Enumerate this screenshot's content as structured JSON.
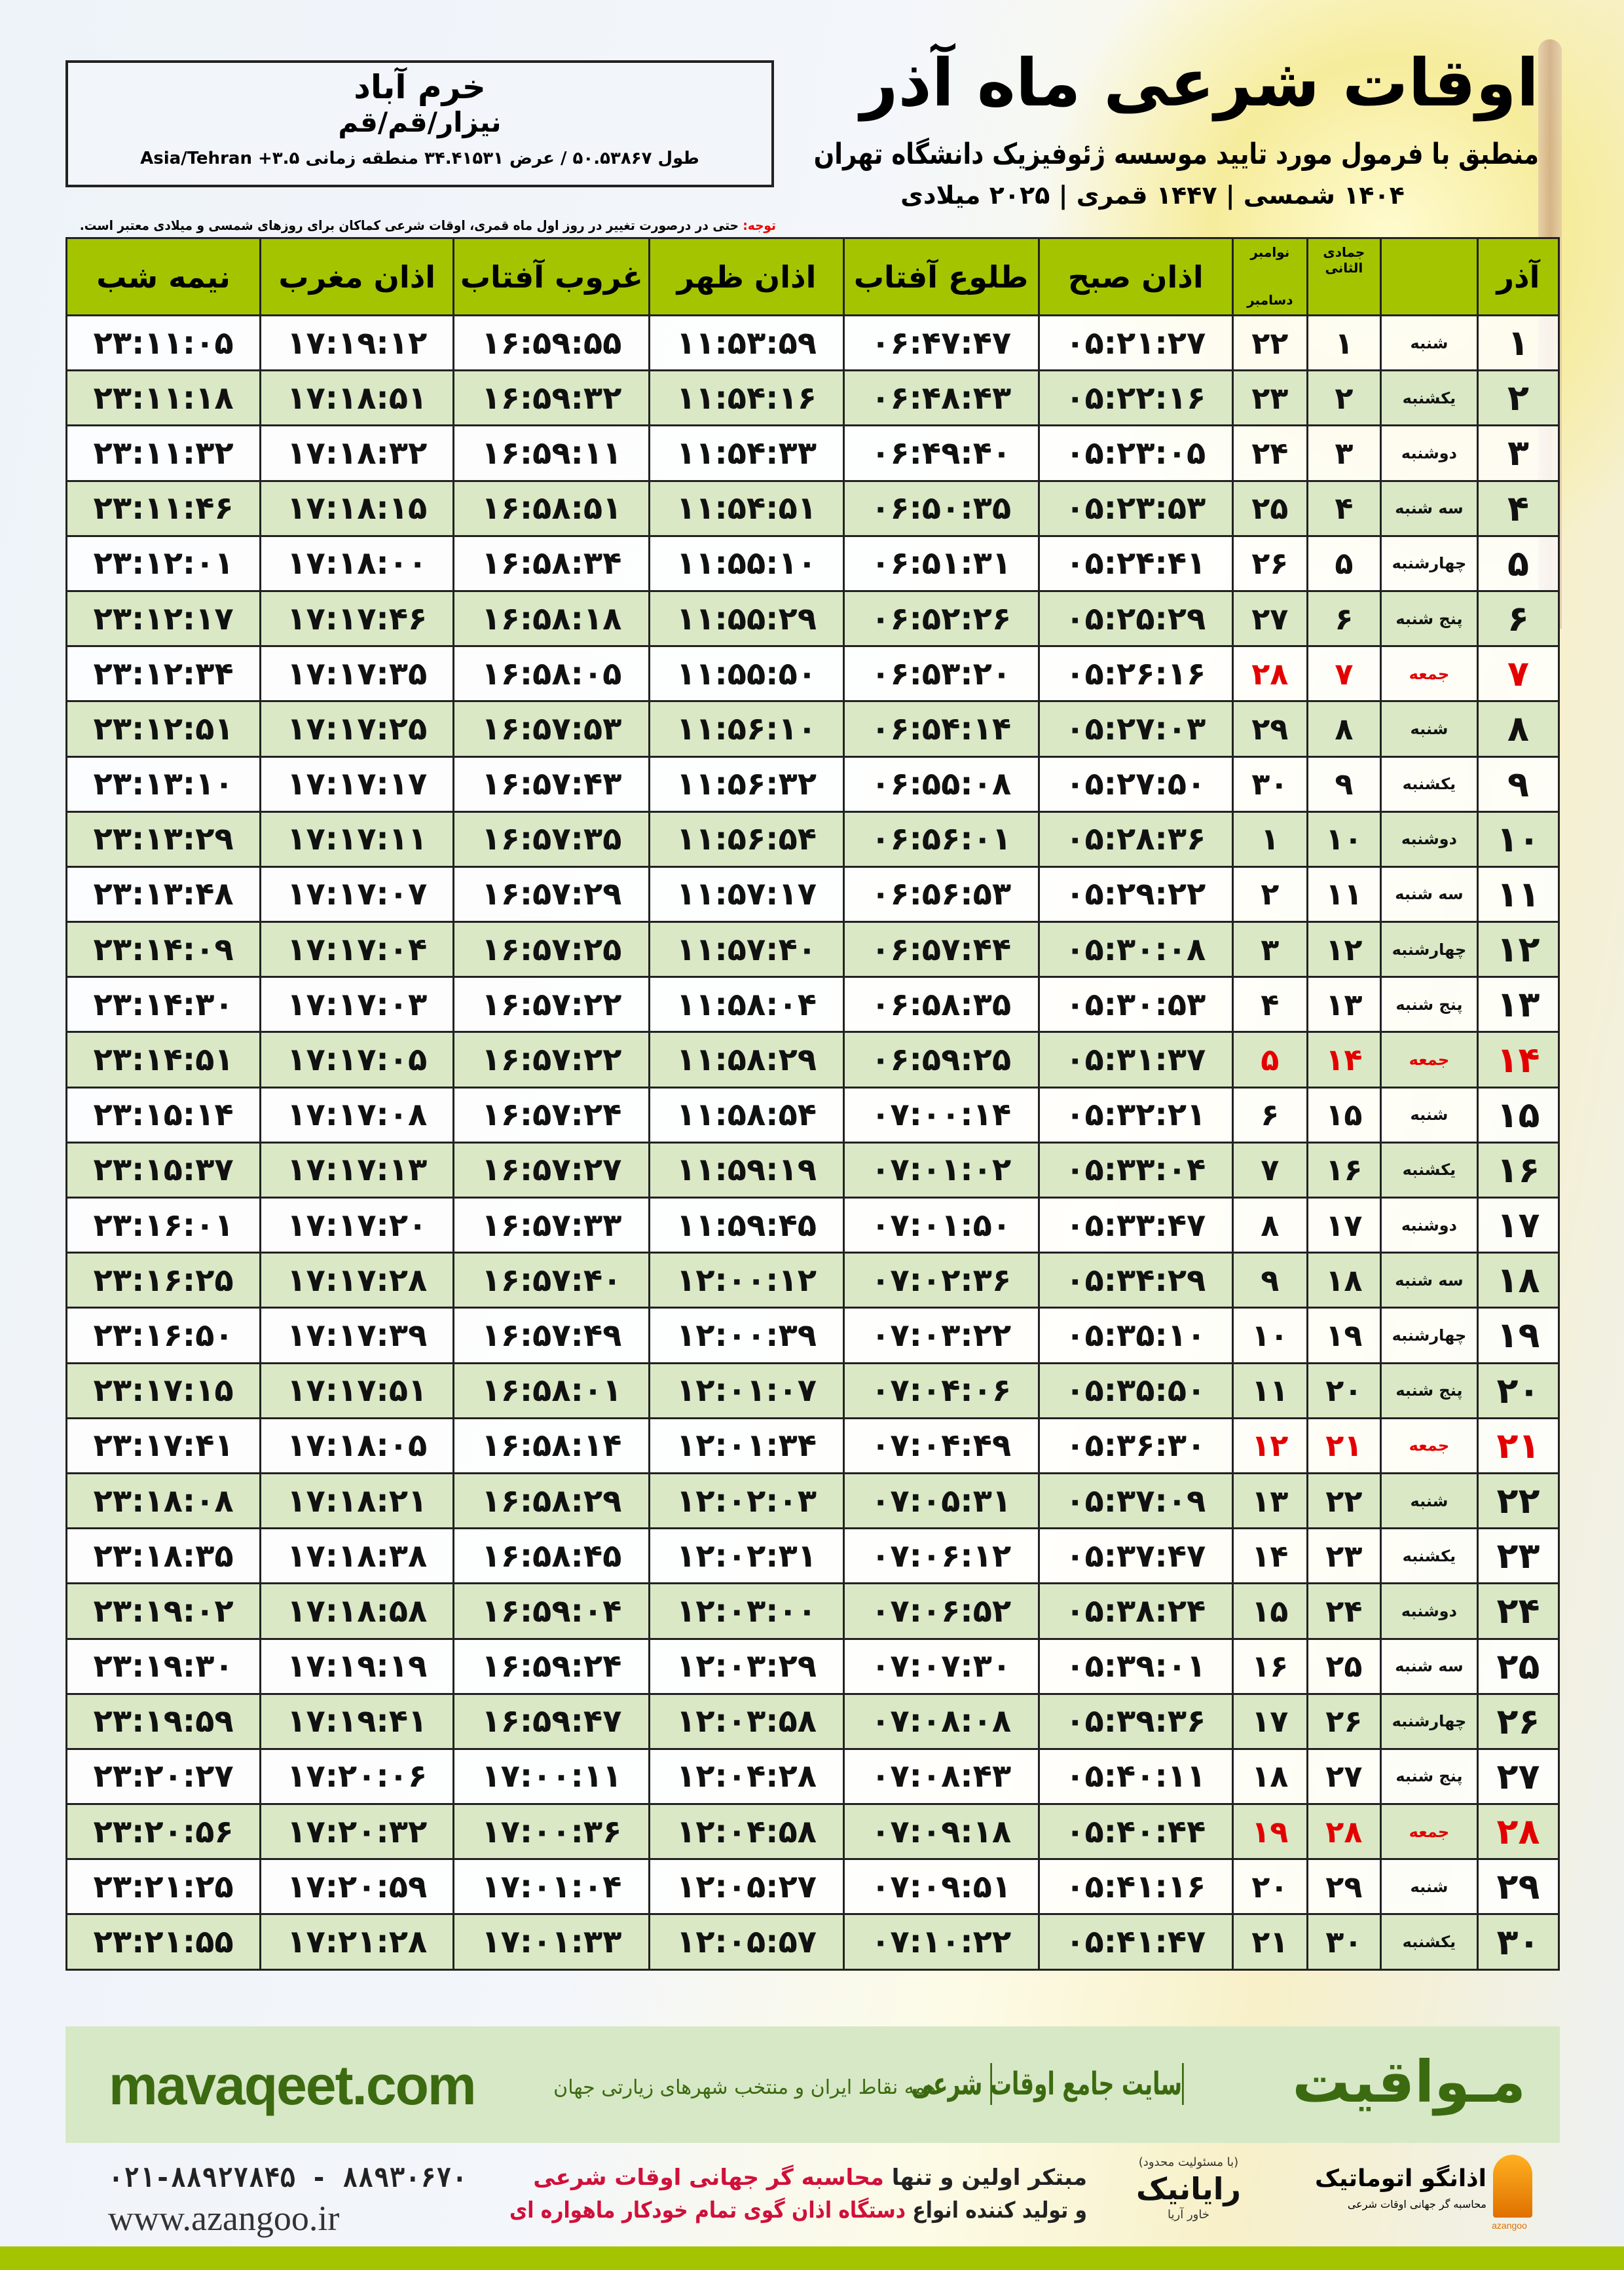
{
  "location": {
    "city": "خرم آباد",
    "alt_names": "نیزار/قم/قم",
    "coords": "طول ۵۰.۵۳۸۶۷ / عرض ۳۴.۴۱۵۳۱ منطقه زمانی ۳.۵+ Asia/Tehran"
  },
  "header": {
    "title": "اوقات شرعی ماه آذر",
    "subtitle": "منطبق با فرمول مورد تایید موسسه ژئوفیزیک دانشگاه تهران",
    "dates": "۱۴۰۴ شمسی | ۱۴۴۷ قمری | ۲۰۲۵ میلادی"
  },
  "note": {
    "label": "توجه:",
    "text": " حتی در درصورت تغییر در روز اول ماه قمری، اوقات شرعی کماکان برای روزهای شمسی و میلادی معتبر است."
  },
  "columns": {
    "day": "آذر",
    "hijri": "جمادی الثانی",
    "greg_top": "نوامبر",
    "greg_bottom": "دسامبر",
    "fajr": "اذان صبح",
    "sunrise": "طلوع آفتاب",
    "dhuhr": "اذان ظهر",
    "sunset": "غروب آفتاب",
    "maghrib": "اذان مغرب",
    "midnight": "نیمه شب"
  },
  "colors": {
    "header_green": "#a5c400",
    "row_green": "#dae8c5",
    "holiday_red": "#e30000",
    "brand_green": "#3c6a10"
  },
  "rows": [
    [
      "۱",
      "شنبه",
      "۱",
      "۲۲",
      "۰۵:۲۱:۲۷",
      "۰۶:۴۷:۴۷",
      "۱۱:۵۳:۵۹",
      "۱۶:۵۹:۵۵",
      "۱۷:۱۹:۱۲",
      "۲۳:۱۱:۰۵",
      false
    ],
    [
      "۲",
      "یکشنبه",
      "۲",
      "۲۳",
      "۰۵:۲۲:۱۶",
      "۰۶:۴۸:۴۳",
      "۱۱:۵۴:۱۶",
      "۱۶:۵۹:۳۲",
      "۱۷:۱۸:۵۱",
      "۲۳:۱۱:۱۸",
      false
    ],
    [
      "۳",
      "دوشنبه",
      "۳",
      "۲۴",
      "۰۵:۲۳:۰۵",
      "۰۶:۴۹:۴۰",
      "۱۱:۵۴:۳۳",
      "۱۶:۵۹:۱۱",
      "۱۷:۱۸:۳۲",
      "۲۳:۱۱:۳۲",
      false
    ],
    [
      "۴",
      "سه شنبه",
      "۴",
      "۲۵",
      "۰۵:۲۳:۵۳",
      "۰۶:۵۰:۳۵",
      "۱۱:۵۴:۵۱",
      "۱۶:۵۸:۵۱",
      "۱۷:۱۸:۱۵",
      "۲۳:۱۱:۴۶",
      false
    ],
    [
      "۵",
      "چهارشنبه",
      "۵",
      "۲۶",
      "۰۵:۲۴:۴۱",
      "۰۶:۵۱:۳۱",
      "۱۱:۵۵:۱۰",
      "۱۶:۵۸:۳۴",
      "۱۷:۱۸:۰۰",
      "۲۳:۱۲:۰۱",
      false
    ],
    [
      "۶",
      "پنج شنبه",
      "۶",
      "۲۷",
      "۰۵:۲۵:۲۹",
      "۰۶:۵۲:۲۶",
      "۱۱:۵۵:۲۹",
      "۱۶:۵۸:۱۸",
      "۱۷:۱۷:۴۶",
      "۲۳:۱۲:۱۷",
      false
    ],
    [
      "۷",
      "جمعه",
      "۷",
      "۲۸",
      "۰۵:۲۶:۱۶",
      "۰۶:۵۳:۲۰",
      "۱۱:۵۵:۵۰",
      "۱۶:۵۸:۰۵",
      "۱۷:۱۷:۳۵",
      "۲۳:۱۲:۳۴",
      true
    ],
    [
      "۸",
      "شنبه",
      "۸",
      "۲۹",
      "۰۵:۲۷:۰۳",
      "۰۶:۵۴:۱۴",
      "۱۱:۵۶:۱۰",
      "۱۶:۵۷:۵۳",
      "۱۷:۱۷:۲۵",
      "۲۳:۱۲:۵۱",
      false
    ],
    [
      "۹",
      "یکشنبه",
      "۹",
      "۳۰",
      "۰۵:۲۷:۵۰",
      "۰۶:۵۵:۰۸",
      "۱۱:۵۶:۳۲",
      "۱۶:۵۷:۴۳",
      "۱۷:۱۷:۱۷",
      "۲۳:۱۳:۱۰",
      false
    ],
    [
      "۱۰",
      "دوشنبه",
      "۱۰",
      "۱",
      "۰۵:۲۸:۳۶",
      "۰۶:۵۶:۰۱",
      "۱۱:۵۶:۵۴",
      "۱۶:۵۷:۳۵",
      "۱۷:۱۷:۱۱",
      "۲۳:۱۳:۲۹",
      false
    ],
    [
      "۱۱",
      "سه شنبه",
      "۱۱",
      "۲",
      "۰۵:۲۹:۲۲",
      "۰۶:۵۶:۵۳",
      "۱۱:۵۷:۱۷",
      "۱۶:۵۷:۲۹",
      "۱۷:۱۷:۰۷",
      "۲۳:۱۳:۴۸",
      false
    ],
    [
      "۱۲",
      "چهارشنبه",
      "۱۲",
      "۳",
      "۰۵:۳۰:۰۸",
      "۰۶:۵۷:۴۴",
      "۱۱:۵۷:۴۰",
      "۱۶:۵۷:۲۵",
      "۱۷:۱۷:۰۴",
      "۲۳:۱۴:۰۹",
      false
    ],
    [
      "۱۳",
      "پنج شنبه",
      "۱۳",
      "۴",
      "۰۵:۳۰:۵۳",
      "۰۶:۵۸:۳۵",
      "۱۱:۵۸:۰۴",
      "۱۶:۵۷:۲۲",
      "۱۷:۱۷:۰۳",
      "۲۳:۱۴:۳۰",
      false
    ],
    [
      "۱۴",
      "جمعه",
      "۱۴",
      "۵",
      "۰۵:۳۱:۳۷",
      "۰۶:۵۹:۲۵",
      "۱۱:۵۸:۲۹",
      "۱۶:۵۷:۲۲",
      "۱۷:۱۷:۰۵",
      "۲۳:۱۴:۵۱",
      true
    ],
    [
      "۱۵",
      "شنبه",
      "۱۵",
      "۶",
      "۰۵:۳۲:۲۱",
      "۰۷:۰۰:۱۴",
      "۱۱:۵۸:۵۴",
      "۱۶:۵۷:۲۴",
      "۱۷:۱۷:۰۸",
      "۲۳:۱۵:۱۴",
      false
    ],
    [
      "۱۶",
      "یکشنبه",
      "۱۶",
      "۷",
      "۰۵:۳۳:۰۴",
      "۰۷:۰۱:۰۲",
      "۱۱:۵۹:۱۹",
      "۱۶:۵۷:۲۷",
      "۱۷:۱۷:۱۳",
      "۲۳:۱۵:۳۷",
      false
    ],
    [
      "۱۷",
      "دوشنبه",
      "۱۷",
      "۸",
      "۰۵:۳۳:۴۷",
      "۰۷:۰۱:۵۰",
      "۱۱:۵۹:۴۵",
      "۱۶:۵۷:۳۳",
      "۱۷:۱۷:۲۰",
      "۲۳:۱۶:۰۱",
      false
    ],
    [
      "۱۸",
      "سه شنبه",
      "۱۸",
      "۹",
      "۰۵:۳۴:۲۹",
      "۰۷:۰۲:۳۶",
      "۱۲:۰۰:۱۲",
      "۱۶:۵۷:۴۰",
      "۱۷:۱۷:۲۸",
      "۲۳:۱۶:۲۵",
      false
    ],
    [
      "۱۹",
      "چهارشنبه",
      "۱۹",
      "۱۰",
      "۰۵:۳۵:۱۰",
      "۰۷:۰۳:۲۲",
      "۱۲:۰۰:۳۹",
      "۱۶:۵۷:۴۹",
      "۱۷:۱۷:۳۹",
      "۲۳:۱۶:۵۰",
      false
    ],
    [
      "۲۰",
      "پنج شنبه",
      "۲۰",
      "۱۱",
      "۰۵:۳۵:۵۰",
      "۰۷:۰۴:۰۶",
      "۱۲:۰۱:۰۷",
      "۱۶:۵۸:۰۱",
      "۱۷:۱۷:۵۱",
      "۲۳:۱۷:۱۵",
      false
    ],
    [
      "۲۱",
      "جمعه",
      "۲۱",
      "۱۲",
      "۰۵:۳۶:۳۰",
      "۰۷:۰۴:۴۹",
      "۱۲:۰۱:۳۴",
      "۱۶:۵۸:۱۴",
      "۱۷:۱۸:۰۵",
      "۲۳:۱۷:۴۱",
      true
    ],
    [
      "۲۲",
      "شنبه",
      "۲۲",
      "۱۳",
      "۰۵:۳۷:۰۹",
      "۰۷:۰۵:۳۱",
      "۱۲:۰۲:۰۳",
      "۱۶:۵۸:۲۹",
      "۱۷:۱۸:۲۱",
      "۲۳:۱۸:۰۸",
      false
    ],
    [
      "۲۳",
      "یکشنبه",
      "۲۳",
      "۱۴",
      "۰۵:۳۷:۴۷",
      "۰۷:۰۶:۱۲",
      "۱۲:۰۲:۳۱",
      "۱۶:۵۸:۴۵",
      "۱۷:۱۸:۳۸",
      "۲۳:۱۸:۳۵",
      false
    ],
    [
      "۲۴",
      "دوشنبه",
      "۲۴",
      "۱۵",
      "۰۵:۳۸:۲۴",
      "۰۷:۰۶:۵۲",
      "۱۲:۰۳:۰۰",
      "۱۶:۵۹:۰۴",
      "۱۷:۱۸:۵۸",
      "۲۳:۱۹:۰۲",
      false
    ],
    [
      "۲۵",
      "سه شنبه",
      "۲۵",
      "۱۶",
      "۰۵:۳۹:۰۱",
      "۰۷:۰۷:۳۰",
      "۱۲:۰۳:۲۹",
      "۱۶:۵۹:۲۴",
      "۱۷:۱۹:۱۹",
      "۲۳:۱۹:۳۰",
      false
    ],
    [
      "۲۶",
      "چهارشنبه",
      "۲۶",
      "۱۷",
      "۰۵:۳۹:۳۶",
      "۰۷:۰۸:۰۸",
      "۱۲:۰۳:۵۸",
      "۱۶:۵۹:۴۷",
      "۱۷:۱۹:۴۱",
      "۲۳:۱۹:۵۹",
      false
    ],
    [
      "۲۷",
      "پنج شنبه",
      "۲۷",
      "۱۸",
      "۰۵:۴۰:۱۱",
      "۰۷:۰۸:۴۳",
      "۱۲:۰۴:۲۸",
      "۱۷:۰۰:۱۱",
      "۱۷:۲۰:۰۶",
      "۲۳:۲۰:۲۷",
      false
    ],
    [
      "۲۸",
      "جمعه",
      "۲۸",
      "۱۹",
      "۰۵:۴۰:۴۴",
      "۰۷:۰۹:۱۸",
      "۱۲:۰۴:۵۸",
      "۱۷:۰۰:۳۶",
      "۱۷:۲۰:۳۲",
      "۲۳:۲۰:۵۶",
      true
    ],
    [
      "۲۹",
      "شنبه",
      "۲۹",
      "۲۰",
      "۰۵:۴۱:۱۶",
      "۰۷:۰۹:۵۱",
      "۱۲:۰۵:۲۷",
      "۱۷:۰۱:۰۴",
      "۱۷:۲۰:۵۹",
      "۲۳:۲۱:۲۵",
      false
    ],
    [
      "۳۰",
      "یکشنبه",
      "۳۰",
      "۲۱",
      "۰۵:۴۱:۴۷",
      "۰۷:۱۰:۲۲",
      "۱۲:۰۵:۵۷",
      "۱۷:۰۱:۳۳",
      "۱۷:۲۱:۲۸",
      "۲۳:۲۱:۵۵",
      false
    ]
  ],
  "footer": {
    "brand": "مـواقیت",
    "tagline": "سایت جامع اوقات شرعی",
    "tagline2": "همه نقاط ایران و منتخب شهرهای زیارتی جهان",
    "url": "mavaqeet.com",
    "phones": "۰۲۱-۸۸۹۲۷۸۴۵ - ۸۸۹۳۰۶۷۰",
    "website": "www.azangoo.ir",
    "slogan1_a": "مبتکر اولین و تنها ",
    "slogan1_b": "محاسبه گر جهانی اوقات شرعی",
    "slogan2_a": "و تولید کننده انواع ",
    "slogan2_b": "دستگاه اذان گوی تمام خودکار ماهواره ای",
    "rayanik_name": "رایانیک",
    "rayanik_sub": "خاور آریا",
    "rayanik_top": "(با مسئولیت محدود)",
    "azangoo_name": "اذانگو اتوماتیک",
    "azangoo_sub": "محاسبه گر جهانی اوقات شرعی",
    "azangoo_en": "azangoo"
  }
}
